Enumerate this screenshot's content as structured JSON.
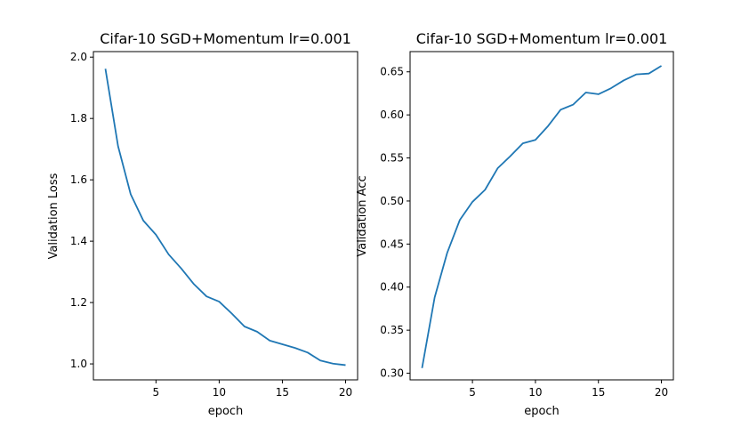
{
  "chart_data": [
    {
      "type": "line",
      "title": "Cifar-10 SGD+Momentum lr=0.001",
      "xlabel": "epoch",
      "ylabel": "Validation Loss",
      "xlim": [
        0.05,
        20.95
      ],
      "ylim": [
        0.948,
        2.018
      ],
      "xticks": [
        5,
        10,
        15,
        20
      ],
      "yticks": [
        1.0,
        1.2,
        1.4,
        1.6,
        1.8,
        2.0
      ],
      "ytick_labels": [
        "1.0",
        "1.2",
        "1.4",
        "1.6",
        "1.8",
        "2.0"
      ],
      "grid": false,
      "series_color": "#1f77b4",
      "x": [
        1,
        2,
        3,
        4,
        5,
        6,
        7,
        8,
        9,
        10,
        11,
        12,
        13,
        14,
        15,
        16,
        17,
        18,
        19,
        20
      ],
      "y": [
        1.962,
        1.71,
        1.553,
        1.467,
        1.421,
        1.357,
        1.311,
        1.26,
        1.22,
        1.203,
        1.164,
        1.122,
        1.105,
        1.076,
        1.064,
        1.052,
        1.037,
        1.011,
        1.001,
        0.996
      ]
    },
    {
      "type": "line",
      "title": "Cifar-10 SGD+Momentum lr=0.001",
      "xlabel": "epoch",
      "ylabel": "Validation Acc",
      "xlim": [
        0.05,
        20.95
      ],
      "ylim": [
        0.2923,
        0.6735
      ],
      "xticks": [
        5,
        10,
        15,
        20
      ],
      "yticks": [
        0.3,
        0.35,
        0.4,
        0.45,
        0.5,
        0.55,
        0.6,
        0.65
      ],
      "ytick_labels": [
        "0.30",
        "0.35",
        "0.40",
        "0.45",
        "0.50",
        "0.55",
        "0.60",
        "0.65"
      ],
      "grid": false,
      "series_color": "#1f77b4",
      "x": [
        1,
        2,
        3,
        4,
        5,
        6,
        7,
        8,
        9,
        10,
        11,
        12,
        13,
        14,
        15,
        16,
        17,
        18,
        19,
        20
      ],
      "y": [
        0.306,
        0.388,
        0.44,
        0.478,
        0.499,
        0.513,
        0.538,
        0.552,
        0.567,
        0.571,
        0.587,
        0.606,
        0.612,
        0.626,
        0.624,
        0.631,
        0.64,
        0.647,
        0.648,
        0.657
      ]
    }
  ]
}
